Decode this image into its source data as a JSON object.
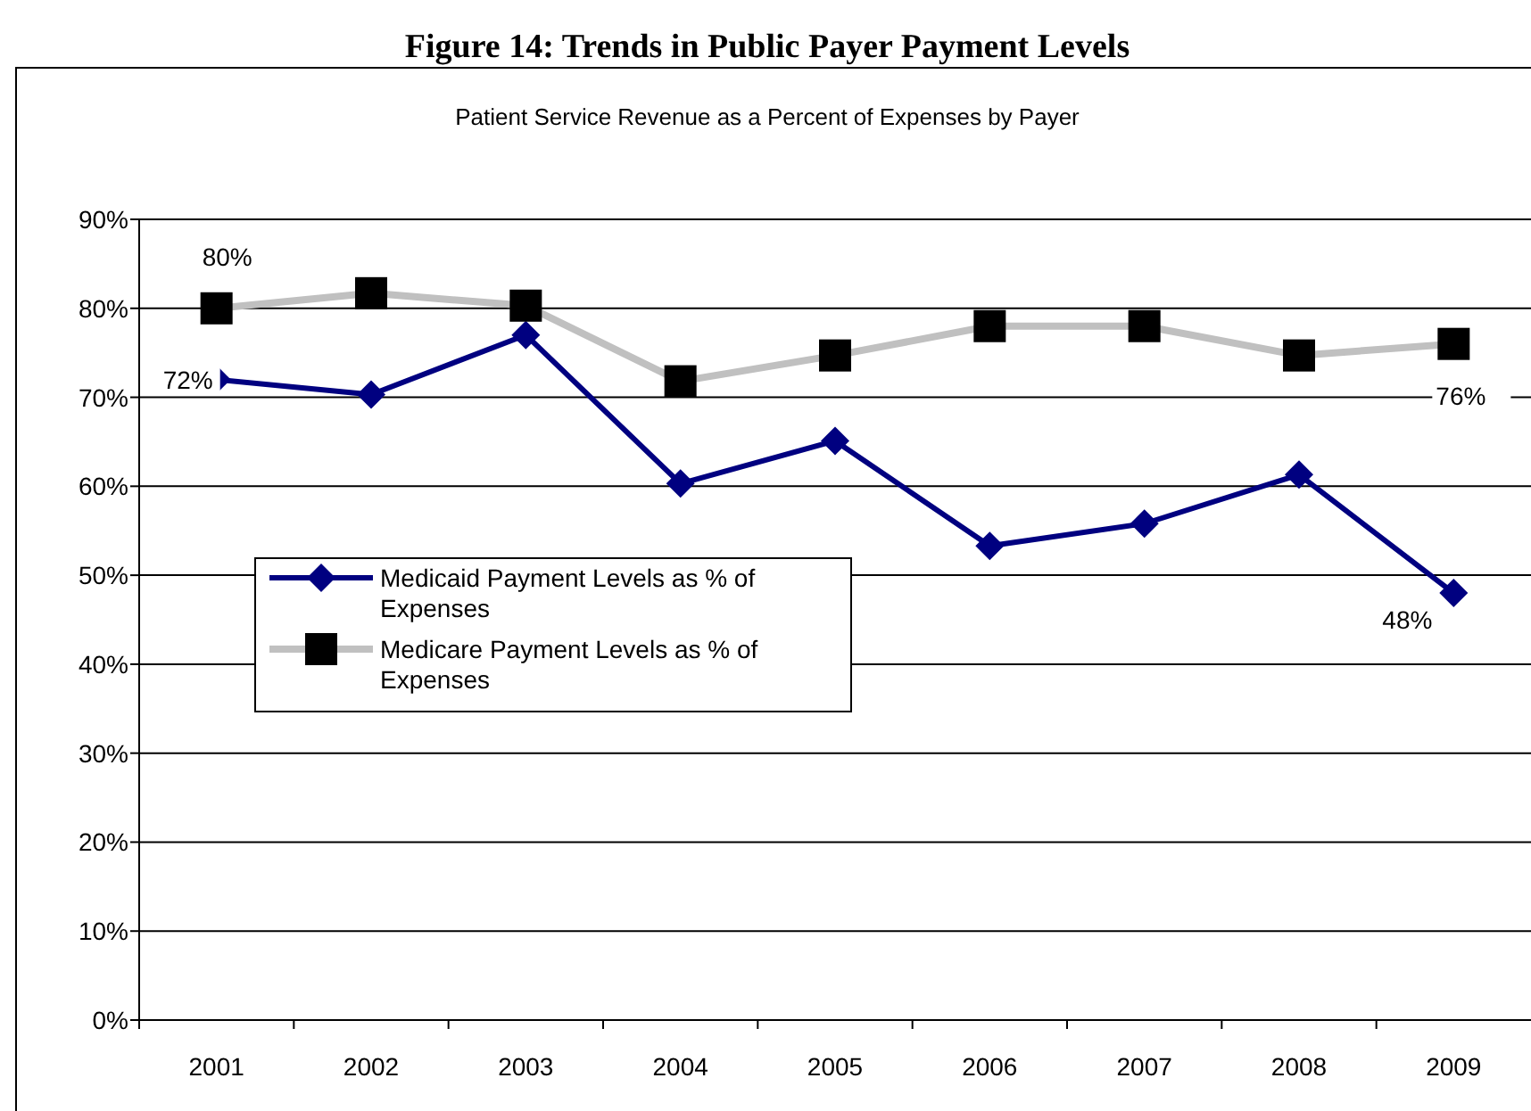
{
  "chart_data": {
    "type": "line",
    "title": "Figure 14: Trends in Public Payer Payment Levels",
    "subtitle": "Patient Service Revenue as a Percent of Expenses by Payer",
    "categories": [
      "2001",
      "2002",
      "2003",
      "2004",
      "2005",
      "2006",
      "2007",
      "2008",
      "2009"
    ],
    "series": [
      {
        "name": "Medicaid Payment Levels as % of Expenses",
        "color": "#000080",
        "marker": "diamond",
        "values": [
          72,
          70.3,
          77,
          60.3,
          65.1,
          53.3,
          55.8,
          61.3,
          48
        ],
        "value_labels": [
          "72%",
          null,
          null,
          null,
          null,
          null,
          null,
          null,
          "48%"
        ]
      },
      {
        "name": "Medicare Payment Levels as % of Expenses",
        "color": "#c0c0c0",
        "marker": "square",
        "values": [
          80,
          81.7,
          80.3,
          71.8,
          74.7,
          78,
          78,
          74.7,
          76
        ],
        "value_labels": [
          "80%",
          null,
          null,
          null,
          null,
          null,
          null,
          null,
          "76%"
        ]
      }
    ],
    "ylim": [
      0,
      90
    ],
    "yticks": [
      {
        "value": 0,
        "label": "0%"
      },
      {
        "value": 10,
        "label": "10%"
      },
      {
        "value": 20,
        "label": "20%"
      },
      {
        "value": 30,
        "label": "30%"
      },
      {
        "value": 40,
        "label": "40%"
      },
      {
        "value": 50,
        "label": "50%"
      },
      {
        "value": 60,
        "label": "60%"
      },
      {
        "value": 70,
        "label": "70%"
      },
      {
        "value": 80,
        "label": "80%"
      },
      {
        "value": 90,
        "label": "90%"
      }
    ],
    "grid": "y",
    "legend": "left"
  }
}
